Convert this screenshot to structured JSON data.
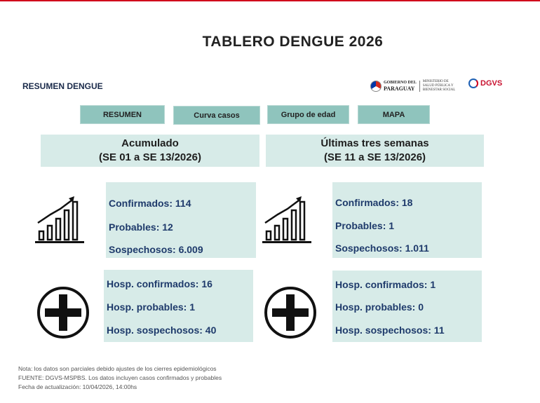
{
  "header": {
    "title": "TABLERO DENGUE 2026",
    "section": "RESUMEN DENGUE"
  },
  "logos": {
    "gov_line1": "GOBIERNO DEL",
    "gov_line2": "PARAGUAY",
    "ministry_line1": "MINISTERIO DE",
    "ministry_line2": "SALUD PÚBLICA Y",
    "ministry_line3": "BIENESTAR SOCIAL",
    "dgvs": "DGVS"
  },
  "nav": {
    "resumen": "RESUMEN",
    "curva": "Curva casos",
    "grupo": "Grupo de edad",
    "mapa": "MAPA"
  },
  "acumulado": {
    "heading": "Acumulado",
    "range": "(SE 01 a SE 13/2026)",
    "confirmados": "Confirmados: 114",
    "probables": "Probables: 12",
    "sospechosos": "Sospechosos: 6.009",
    "hosp_confirmados": "Hosp. confirmados: 16",
    "hosp_probables": "Hosp. probables: 1",
    "hosp_sospechosos": "Hosp. sospechosos: 40"
  },
  "ultimas": {
    "heading": "Últimas tres semanas",
    "range": "(SE 11 a SE 13/2026)",
    "confirmados": "Confirmados: 18",
    "probables": "Probables: 1",
    "sospechosos": "Sospechosos: 1.011",
    "hosp_confirmados": "Hosp. confirmados: 1",
    "hosp_probables": "Hosp. probables: 0",
    "hosp_sospechosos": "Hosp. sospechosos: 11"
  },
  "footer": {
    "line1": "Nota: los datos son parciales debido ajustes de los cierres epidemiológicos",
    "line2": "FUENTE: DGVS-MSPBS. Los datos incluyen casos confirmados y probables",
    "line3": "Fecha de actualización: 10/04/2026, 14:00hs"
  },
  "icons": {
    "trend": "bar-chart-trend-up-icon",
    "hospital": "plus-circle-icon"
  },
  "colors": {
    "nav_button": "#8fc4bd",
    "panel": "#d7ebe8",
    "stat_text": "#1e3a6b",
    "top_rule": "#d0021b"
  }
}
